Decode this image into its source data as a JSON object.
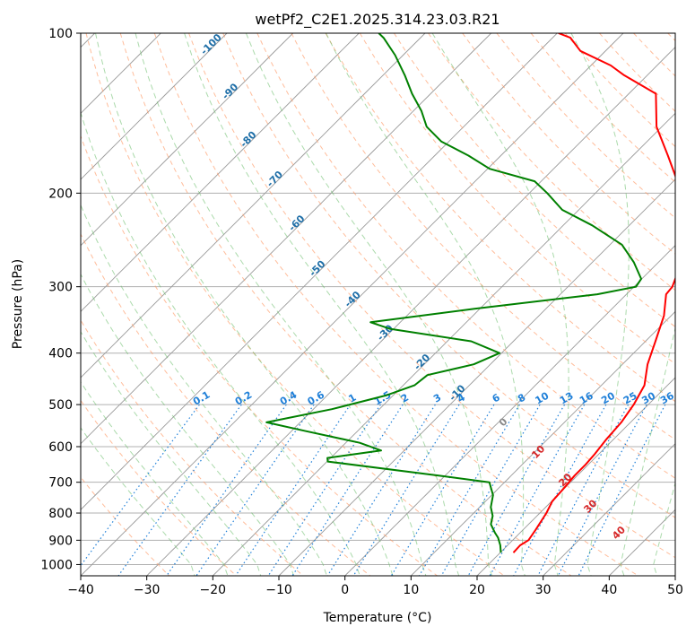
{
  "chart_data": {
    "type": "line",
    "title": "wetPf2_C2E1.2025.314.23.03.R21",
    "xlabel": "Temperature (°C)",
    "ylabel": "Pressure (hPa)",
    "xlim": [
      -40,
      50
    ],
    "ylim": [
      1050,
      100
    ],
    "y_scale": "log",
    "grid": true,
    "x_ticks": [
      -40,
      -30,
      -20,
      -10,
      0,
      10,
      20,
      30,
      40,
      50
    ],
    "y_ticks": [
      100,
      200,
      300,
      400,
      500,
      600,
      700,
      800,
      900,
      1000
    ],
    "skew_t": true,
    "series": [
      {
        "color": "#ff0000",
        "points": [
          [
            22.0,
            950
          ],
          [
            21.9,
            920
          ],
          [
            22.4,
            900
          ],
          [
            21.9,
            860
          ],
          [
            21.0,
            800
          ],
          [
            20.1,
            760
          ],
          [
            19.9,
            720
          ],
          [
            19.6,
            680
          ],
          [
            19.6,
            650
          ],
          [
            19.4,
            620
          ],
          [
            18.9,
            580
          ],
          [
            18.6,
            540
          ],
          [
            17.8,
            500
          ],
          [
            16.5,
            460
          ],
          [
            13.8,
            420
          ],
          [
            11.5,
            380
          ],
          [
            8.9,
            340
          ],
          [
            6.0,
            310
          ],
          [
            5.8,
            300
          ],
          [
            3.5,
            270
          ],
          [
            -1.2,
            240
          ],
          [
            -6.0,
            210
          ],
          [
            -9.4,
            190
          ],
          [
            -14.7,
            170
          ],
          [
            -20.8,
            150
          ],
          [
            -25.9,
            130
          ],
          [
            -33.5,
            120
          ],
          [
            -37.0,
            115
          ],
          [
            -43.8,
            108
          ],
          [
            -47.3,
            102
          ],
          [
            -49.8,
            100
          ]
        ]
      },
      {
        "color": "#008000",
        "points": [
          [
            20.1,
            950
          ],
          [
            18.9,
            920
          ],
          [
            17.4,
            890
          ],
          [
            16.1,
            870
          ],
          [
            14.3,
            840
          ],
          [
            13.3,
            810
          ],
          [
            11.7,
            780
          ],
          [
            10.2,
            740
          ],
          [
            7.7,
            700
          ],
          [
            -1.0,
            680
          ],
          [
            -19.9,
            640
          ],
          [
            -20.5,
            630
          ],
          [
            -13.5,
            610
          ],
          [
            -17.9,
            590
          ],
          [
            -28.1,
            560
          ],
          [
            -35.1,
            540
          ],
          [
            -27.2,
            510
          ],
          [
            -21.0,
            480
          ],
          [
            -18.3,
            460
          ],
          [
            -17.9,
            440
          ],
          [
            -12.5,
            420
          ],
          [
            -10.3,
            400
          ],
          [
            -16.4,
            380
          ],
          [
            -30.6,
            360
          ],
          [
            -34.5,
            350
          ],
          [
            -20.8,
            330
          ],
          [
            -4.4,
            310
          ],
          [
            0.3,
            300
          ],
          [
            -0.1,
            290
          ],
          [
            -3.7,
            270
          ],
          [
            -8.2,
            250
          ],
          [
            -15.6,
            230
          ],
          [
            -22.5,
            215
          ],
          [
            -27.3,
            200
          ],
          [
            -31.0,
            190
          ],
          [
            -39.7,
            180
          ],
          [
            -44.9,
            170
          ],
          [
            -51.1,
            160
          ],
          [
            -55.6,
            150
          ],
          [
            -58.8,
            140
          ],
          [
            -62.8,
            130
          ],
          [
            -66.7,
            120
          ],
          [
            -71.2,
            110
          ],
          [
            -75.6,
            102
          ],
          [
            -77.0,
            100
          ]
        ]
      }
    ],
    "isotherm_labels": [
      "-100",
      "-90",
      "-80",
      "-70",
      "-60",
      "-50",
      "-40",
      "-30",
      "-20",
      "-10"
    ],
    "mixing_ratio_labels": [
      "0.1",
      "0.2",
      "0.4",
      "0.6",
      "1",
      "1.5",
      "2",
      "3",
      "4",
      "6",
      "8",
      "10",
      "13",
      "16",
      "20",
      "25",
      "30",
      "36"
    ],
    "moist_adiabat_labels": [
      "0",
      "10",
      "20",
      "30",
      "40"
    ],
    "colors": {
      "temperature": "#ff0000",
      "dewpoint": "#008000",
      "dry_adiabat": "#ff9966",
      "moist_adiabat": "#66bb66",
      "mixing_ratio": "#1e7fd8",
      "isotherm_text": "#1f6fa8",
      "moist_label": "#d62728",
      "grid": "#b0b0b0"
    }
  }
}
